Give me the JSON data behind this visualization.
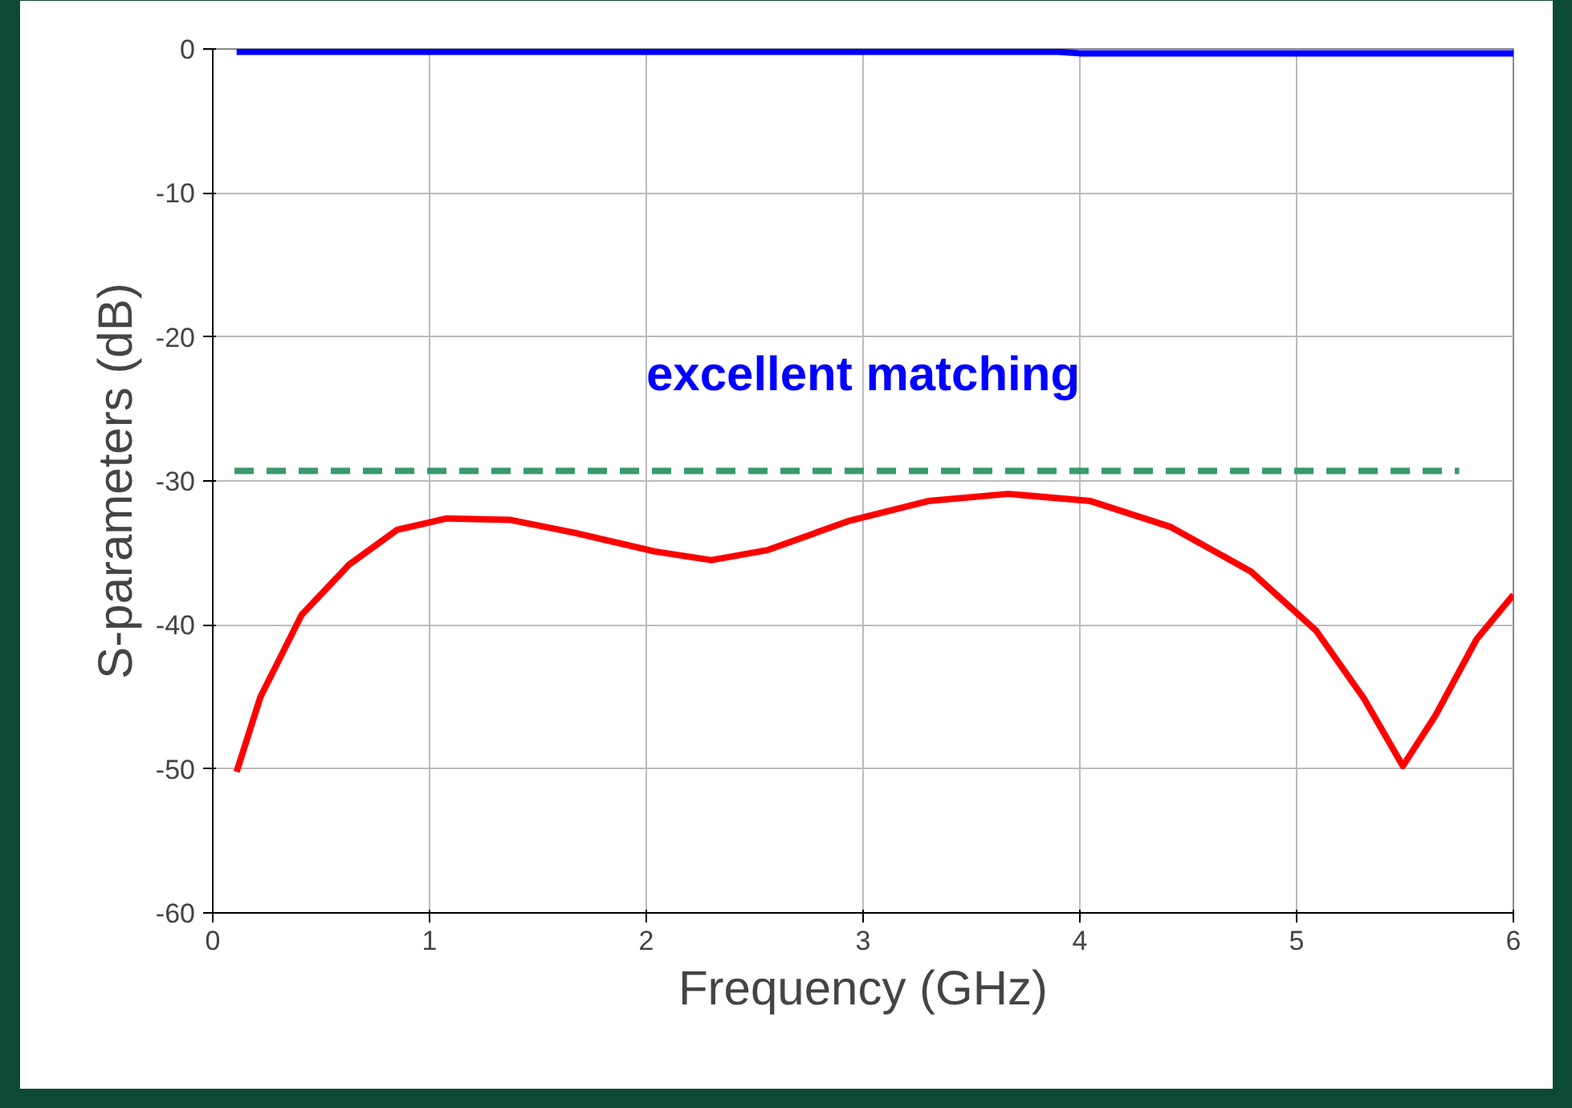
{
  "chart_data": {
    "type": "line",
    "xlabel": "Frequency (GHz)",
    "ylabel": "S-parameters (dB)",
    "annotations": [
      "excellent matching"
    ],
    "xlim": [
      0,
      6
    ],
    "ylim": [
      -60,
      0
    ],
    "xticks": [
      0,
      1,
      2,
      3,
      4,
      5,
      6
    ],
    "yticks": [
      -60,
      -50,
      -40,
      -30,
      -20,
      -10,
      0
    ],
    "grid": true,
    "series": [
      {
        "color": "#0000ff",
        "x": [
          0.11,
          1,
          2,
          3,
          3.9,
          4,
          5,
          6
        ],
        "values": [
          -0.2,
          -0.2,
          -0.2,
          -0.2,
          -0.2,
          -0.3,
          -0.3,
          -0.3
        ]
      },
      {
        "color": "#ff0000",
        "x": [
          0.11,
          0.22,
          0.41,
          0.63,
          0.85,
          1.08,
          1.37,
          1.67,
          2.04,
          2.3,
          2.56,
          2.93,
          3.3,
          3.67,
          4.05,
          4.42,
          4.79,
          5.09,
          5.31,
          5.49,
          5.64,
          5.83,
          6
        ],
        "values": [
          -50.2,
          -45,
          -39.3,
          -35.8,
          -33.4,
          -32.6,
          -32.7,
          -33.6,
          -34.9,
          -35.5,
          -34.8,
          -32.8,
          -31.4,
          -30.9,
          -31.4,
          -33.2,
          -36.3,
          -40.4,
          -45.1,
          -49.8,
          -46.3,
          -41,
          -37.9
        ]
      },
      {
        "color": "#3a9a6a",
        "line_style": "dashed",
        "x": [
          0.1,
          5.75
        ],
        "values": [
          -29.3,
          -29.3
        ]
      }
    ]
  }
}
